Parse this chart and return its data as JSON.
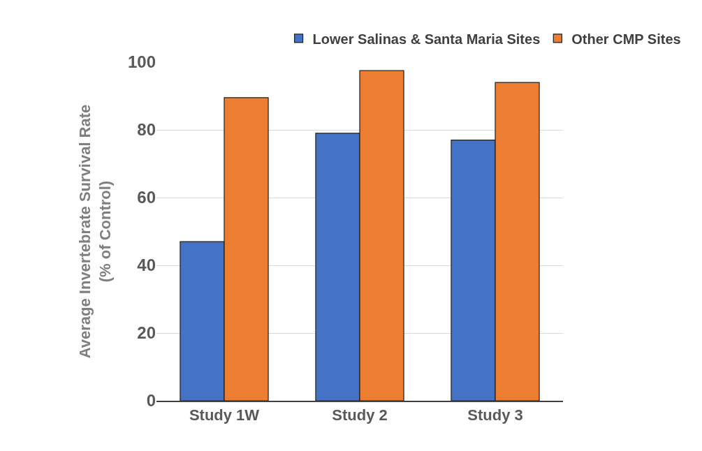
{
  "chart_data": {
    "type": "bar",
    "ylabel": "Average Invertebrate Survival Rate\n(% of Control)",
    "categories": [
      "Study 1W",
      "Study 2",
      "Study 3"
    ],
    "series": [
      {
        "name": "Lower Salinas & Santa Maria Sites",
        "color": "#4472c4",
        "values": [
          47,
          79,
          77
        ]
      },
      {
        "name": "Other CMP Sites",
        "color": "#ed7d31",
        "values": [
          89.5,
          97.5,
          94
        ]
      }
    ],
    "ylim": [
      0,
      100
    ],
    "yticks": [
      0,
      20,
      40,
      60,
      80,
      100
    ],
    "grid": "y",
    "legend": "top right"
  }
}
